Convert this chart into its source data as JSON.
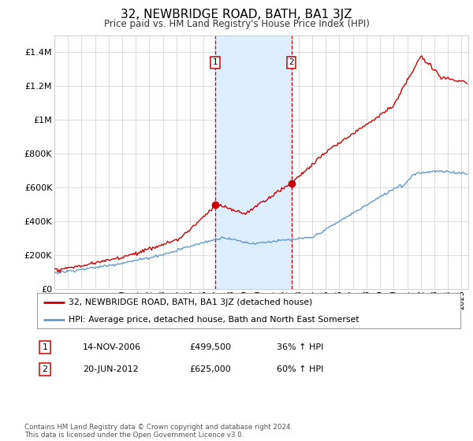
{
  "title": "32, NEWBRIDGE ROAD, BATH, BA1 3JZ",
  "subtitle": "Price paid vs. HM Land Registry's House Price Index (HPI)",
  "legend_line1": "32, NEWBRIDGE ROAD, BATH, BA1 3JZ (detached house)",
  "legend_line2": "HPI: Average price, detached house, Bath and North East Somerset",
  "transaction1_label": "1",
  "transaction1_date": "14-NOV-2006",
  "transaction1_price": "£499,500",
  "transaction1_hpi": "36% ↑ HPI",
  "transaction1_year": 2006.87,
  "transaction1_value": 499500,
  "transaction2_label": "2",
  "transaction2_date": "20-JUN-2012",
  "transaction2_price": "£625,000",
  "transaction2_hpi": "60% ↑ HPI",
  "transaction2_year": 2012.46,
  "transaction2_value": 625000,
  "footer": "Contains HM Land Registry data © Crown copyright and database right 2024.\nThis data is licensed under the Open Government Licence v3.0.",
  "red_color": "#cc0000",
  "blue_color": "#6699cc",
  "shade_color": "#ddeeff",
  "ylim": [
    0,
    1500000
  ],
  "yticks": [
    0,
    200000,
    400000,
    600000,
    800000,
    1000000,
    1200000,
    1400000
  ],
  "xlim_start": 1995.0,
  "xlim_end": 2025.5
}
